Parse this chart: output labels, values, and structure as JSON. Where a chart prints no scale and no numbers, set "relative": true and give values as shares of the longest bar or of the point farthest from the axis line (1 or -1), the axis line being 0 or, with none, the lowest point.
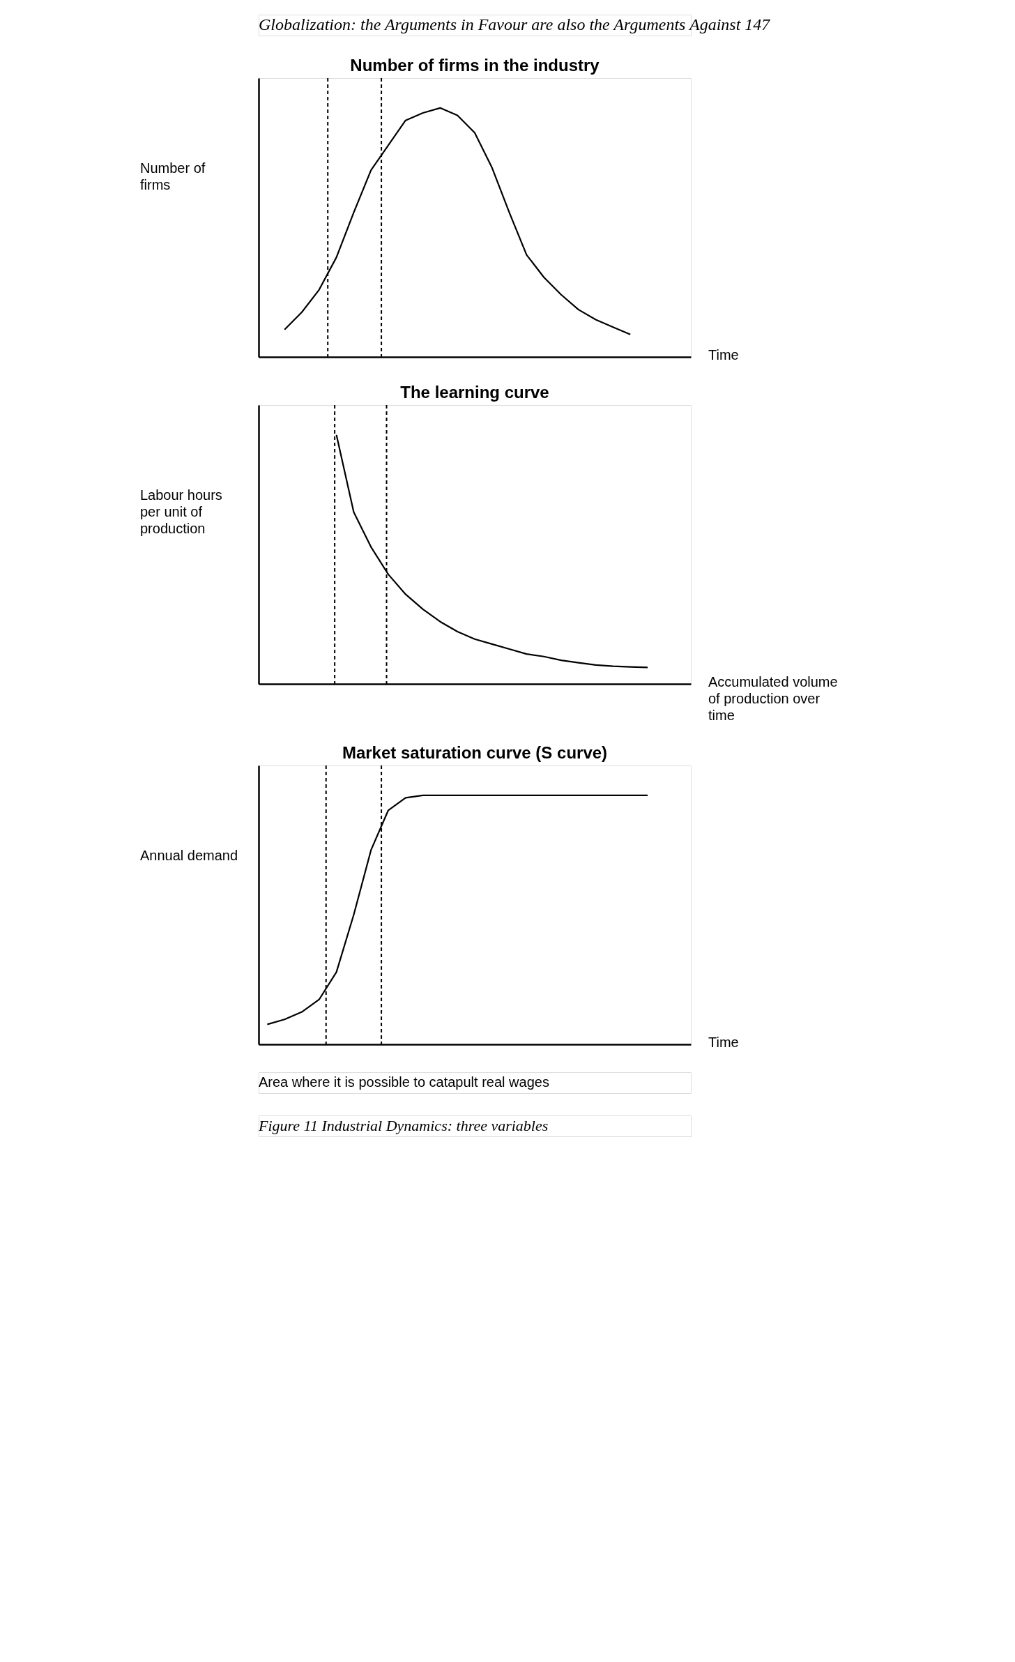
{
  "chart_data": [
    {
      "type": "line",
      "title": "Number of firms in the industry",
      "ylabel": "Number of firms",
      "xlabel": "Time",
      "relative": true,
      "color": "#000000",
      "categories": [
        null,
        null,
        null,
        null,
        null,
        null,
        null,
        null,
        null,
        null,
        null,
        null,
        null,
        null,
        null,
        null,
        null,
        null,
        null,
        null,
        null,
        null,
        null,
        null,
        null
      ],
      "values": [
        null,
        0.11,
        0.18,
        0.27,
        0.4,
        0.58,
        0.75,
        0.85,
        0.95,
        0.98,
        1,
        0.97,
        0.9,
        0.76,
        0.58,
        0.41,
        0.32,
        0.25,
        0.19,
        0.15,
        0.12,
        0.09,
        null,
        null,
        null
      ],
      "annotations": [
        "Globalization: the Arguments in Favour are also the Arguments Against 147"
      ]
    },
    {
      "type": "line",
      "title": "The learning curve",
      "ylabel": "Labour hours per unit of production",
      "xlabel": "Accumulated volume of production over time",
      "relative": true,
      "color": "#000000",
      "categories": [
        null,
        null,
        null,
        null,
        null,
        null,
        null,
        null,
        null,
        null,
        null,
        null,
        null,
        null,
        null,
        null,
        null,
        null,
        null,
        null,
        null,
        null,
        null,
        null,
        null
      ],
      "values": [
        null,
        null,
        null,
        null,
        1,
        0.69,
        0.55,
        0.44,
        0.36,
        0.3,
        0.25,
        0.21,
        0.18,
        0.16,
        0.14,
        0.12,
        0.11,
        0.095,
        0.085,
        0.076,
        0.071,
        0.068,
        0.066,
        null,
        null
      ]
    },
    {
      "type": "line",
      "title": "Market saturation curve (S curve)",
      "ylabel": "Annual demand",
      "xlabel": "Time",
      "relative": true,
      "color": "#000000",
      "categories": [
        null,
        null,
        null,
        null,
        null,
        null,
        null,
        null,
        null,
        null,
        null,
        null,
        null,
        null,
        null,
        null,
        null,
        null,
        null,
        null,
        null,
        null,
        null,
        null,
        null
      ],
      "values": [
        0.08,
        0.1,
        0.13,
        0.18,
        0.29,
        0.52,
        0.78,
        0.94,
        0.99,
        1,
        1,
        1,
        1,
        1,
        1,
        1,
        1,
        1,
        1,
        1,
        1,
        1,
        1,
        null,
        null
      ],
      "annotations": [
        "Area where it is possible to catapult real wages",
        "Figure 11 Industrial Dynamics: three variables"
      ]
    }
  ]
}
